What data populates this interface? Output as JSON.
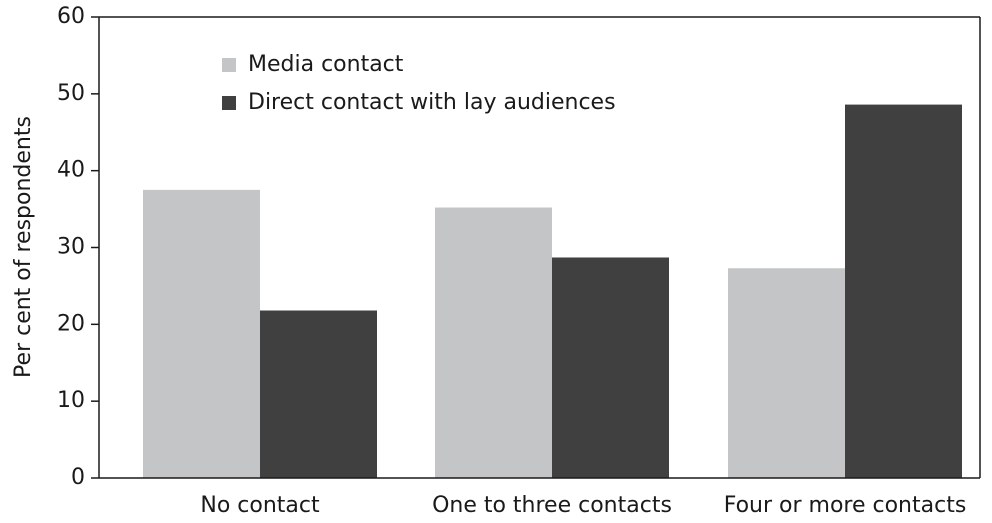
{
  "chart_data": {
    "type": "bar",
    "title": "",
    "xlabel": "",
    "ylabel": "Per cent of respondents",
    "ylim": [
      0,
      60
    ],
    "yticks": [
      0,
      10,
      20,
      30,
      40,
      50,
      60
    ],
    "grid": false,
    "legend_position": "top-left",
    "categories": [
      "No contact",
      "One to three contacts",
      "Four or more contacts"
    ],
    "series": [
      {
        "name": "Media contact",
        "color": "#c4c5c7",
        "values": [
          37.5,
          35.2,
          27.3
        ]
      },
      {
        "name": "Direct contact with lay audiences",
        "color": "#404041",
        "values": [
          21.8,
          28.7,
          48.6
        ]
      }
    ]
  }
}
